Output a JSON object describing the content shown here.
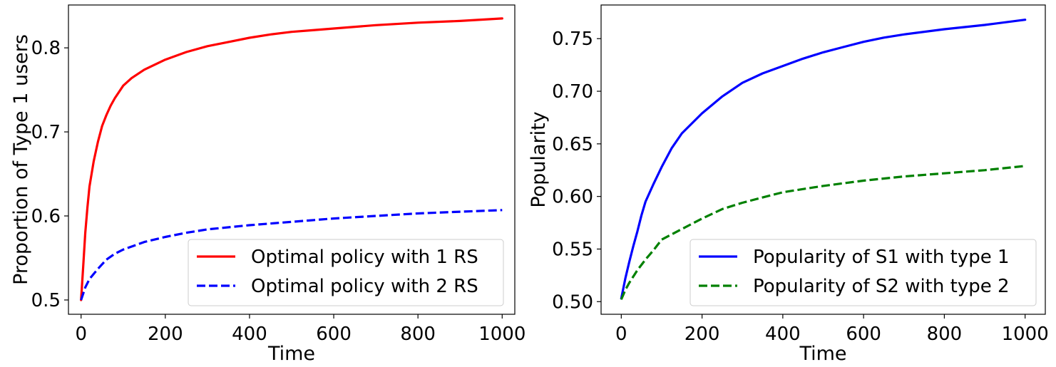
{
  "chart_data": [
    {
      "type": "line",
      "xlabel": "Time",
      "ylabel": "Proportion of Type 1 users",
      "xlim": [
        -30,
        1030
      ],
      "ylim": [
        0.483,
        0.851
      ],
      "xticks": [
        0,
        200,
        400,
        600,
        800,
        1000
      ],
      "xtick_labels": [
        "0",
        "200",
        "400",
        "600",
        "800",
        "1000"
      ],
      "yticks": [
        0.5,
        0.6,
        0.7,
        0.8
      ],
      "ytick_labels": [
        "0.5",
        "0.6",
        "0.7",
        "0.8"
      ],
      "legend_position": "lower-right",
      "series": [
        {
          "name": "Optimal policy with 1 RS",
          "color": "#ff0000",
          "dash": "solid",
          "x": [
            0,
            5,
            10,
            15,
            20,
            30,
            40,
            50,
            60,
            70,
            80,
            100,
            120,
            150,
            200,
            250,
            300,
            350,
            400,
            450,
            500,
            550,
            600,
            700,
            800,
            900,
            1000
          ],
          "y": [
            0.5,
            0.54,
            0.58,
            0.61,
            0.635,
            0.665,
            0.688,
            0.707,
            0.72,
            0.731,
            0.74,
            0.755,
            0.764,
            0.774,
            0.786,
            0.795,
            0.802,
            0.807,
            0.812,
            0.816,
            0.819,
            0.821,
            0.823,
            0.827,
            0.83,
            0.832,
            0.835
          ]
        },
        {
          "name": "Optimal policy with 2 RS",
          "color": "#0000ff",
          "dash": "dashed",
          "x": [
            0,
            10,
            20,
            40,
            60,
            80,
            100,
            150,
            200,
            250,
            300,
            400,
            500,
            600,
            700,
            800,
            900,
            1000
          ],
          "y": [
            0.5,
            0.515,
            0.525,
            0.537,
            0.548,
            0.555,
            0.56,
            0.569,
            0.575,
            0.58,
            0.584,
            0.589,
            0.593,
            0.597,
            0.6,
            0.603,
            0.605,
            0.607
          ]
        }
      ]
    },
    {
      "type": "line",
      "xlabel": "Time",
      "ylabel": "Popularity",
      "xlim": [
        -50,
        1050
      ],
      "ylim": [
        0.488,
        0.782
      ],
      "xticks": [
        0,
        200,
        400,
        600,
        800,
        1000
      ],
      "xtick_labels": [
        "0",
        "200",
        "400",
        "600",
        "800",
        "1000"
      ],
      "yticks": [
        0.5,
        0.55,
        0.6,
        0.65,
        0.7,
        0.75
      ],
      "ytick_labels": [
        "0.50",
        "0.55",
        "0.60",
        "0.65",
        "0.70",
        "0.75"
      ],
      "legend_position": "lower-right",
      "series": [
        {
          "name": "Popularity of S1 with type 1",
          "color": "#0000ff",
          "dash": "solid",
          "x": [
            0,
            10,
            20,
            30,
            40,
            50,
            60,
            80,
            100,
            125,
            150,
            200,
            250,
            300,
            350,
            400,
            450,
            500,
            550,
            600,
            650,
            700,
            800,
            900,
            1000
          ],
          "y": [
            0.503,
            0.522,
            0.538,
            0.553,
            0.567,
            0.582,
            0.595,
            0.612,
            0.628,
            0.646,
            0.66,
            0.679,
            0.695,
            0.708,
            0.717,
            0.724,
            0.731,
            0.737,
            0.742,
            0.747,
            0.751,
            0.754,
            0.759,
            0.763,
            0.768
          ]
        },
        {
          "name": "Popularity of S2 with type 2",
          "color": "#008000",
          "dash": "dashed",
          "x": [
            0,
            10,
            20,
            40,
            60,
            80,
            100,
            150,
            200,
            250,
            300,
            350,
            400,
            500,
            600,
            700,
            800,
            900,
            1000
          ],
          "y": [
            0.502,
            0.511,
            0.518,
            0.53,
            0.54,
            0.549,
            0.559,
            0.569,
            0.579,
            0.588,
            0.594,
            0.599,
            0.604,
            0.61,
            0.615,
            0.619,
            0.622,
            0.625,
            0.629
          ]
        }
      ]
    }
  ]
}
